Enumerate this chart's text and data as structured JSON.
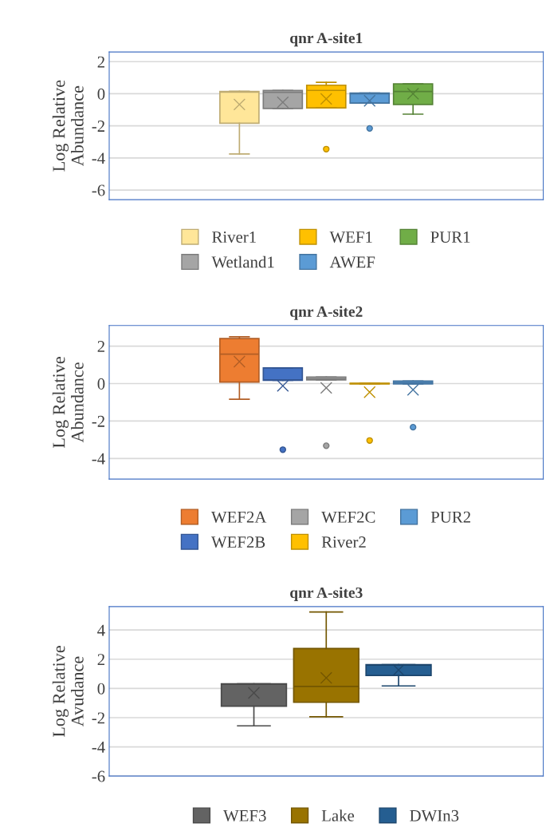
{
  "chart_data": [
    {
      "type": "box",
      "title": "qnr A-site1",
      "ylabel": "Log Relative\nAbundance",
      "categories": [
        null
      ],
      "ylim": [
        -6.6,
        2.6
      ],
      "yticks": [
        -6,
        -4,
        -2,
        0,
        2
      ],
      "grid": "y",
      "legend": "bottom",
      "marker": "cross",
      "series": [
        {
          "name": "River1",
          "color": "#ffe699",
          "boxes": [
            {
              "low": -3.75,
              "q1": -1.84,
              "median": 0.1,
              "q3": 0.14,
              "high": 0.15,
              "mean": -0.67
            }
          ]
        },
        {
          "name": "Wetland1",
          "color": "#a5a5a5",
          "boxes": [
            {
              "low": -0.92,
              "q1": -0.92,
              "median": 0.09,
              "q3": 0.21,
              "high": 0.21,
              "mean": -0.53
            }
          ]
        },
        {
          "name": "WEF1",
          "color": "#ffc000",
          "boxes": [
            {
              "low": -0.88,
              "q1": -0.88,
              "median": 0.21,
              "q3": 0.53,
              "high": 0.71,
              "mean": -0.32,
              "outliers": [
                -3.45
              ]
            }
          ]
        },
        {
          "name": "AWEF",
          "color": "#5b9bd5",
          "boxes": [
            {
              "low": -0.58,
              "q1": -0.58,
              "median": 0.0,
              "q3": 0.04,
              "high": 0.04,
              "mean": -0.44,
              "outliers": [
                -2.16
              ]
            }
          ]
        },
        {
          "name": "PUR1",
          "color": "#70ad47",
          "boxes": [
            {
              "low": -1.27,
              "q1": -0.67,
              "median": 0.14,
              "q3": 0.62,
              "high": 0.62,
              "mean": 0.0
            }
          ]
        }
      ]
    },
    {
      "type": "box",
      "title": "qnr A-site2",
      "ylabel": "Log Relative\nAbundance",
      "categories": [
        null
      ],
      "ylim": [
        -5.1,
        3.1
      ],
      "yticks": [
        -4,
        -2,
        0,
        2
      ],
      "grid": "y",
      "legend": "bottom",
      "marker": "cross",
      "series": [
        {
          "name": "WEF2A",
          "color": "#ed7d31",
          "boxes": [
            {
              "low": -0.84,
              "q1": 0.08,
              "median": 1.57,
              "q3": 2.4,
              "high": 2.5,
              "mean": 1.17
            }
          ]
        },
        {
          "name": "WEF2B",
          "color": "#4472c4",
          "boxes": [
            {
              "low": 0.17,
              "q1": 0.17,
              "median": 0.2,
              "q3": 0.84,
              "high": 0.84,
              "mean": -0.12,
              "outliers": [
                -3.53
              ]
            }
          ]
        },
        {
          "name": "WEF2C",
          "color": "#a5a5a5",
          "boxes": [
            {
              "low": 0.2,
              "q1": 0.2,
              "median": 0.25,
              "q3": 0.35,
              "high": 0.35,
              "mean": -0.23,
              "outliers": [
                -3.32
              ]
            }
          ]
        },
        {
          "name": "River2",
          "color": "#ffc000",
          "boxes": [
            {
              "low": -0.02,
              "q1": -0.02,
              "median": 0.0,
              "q3": 0.02,
              "high": 0.02,
              "mean": -0.46,
              "outliers": [
                -3.04
              ]
            }
          ]
        },
        {
          "name": "PUR2",
          "color": "#5b9bd5",
          "boxes": [
            {
              "low": -0.02,
              "q1": -0.02,
              "median": 0.05,
              "q3": 0.14,
              "high": 0.14,
              "mean": -0.33,
              "outliers": [
                -2.33
              ]
            }
          ]
        }
      ]
    },
    {
      "type": "box",
      "title": "qnr A-site3",
      "ylabel": "Log Relative\nAvudance",
      "categories": [
        null
      ],
      "ylim": [
        -6.0,
        5.6
      ],
      "yticks": [
        -6,
        -4,
        -2,
        0,
        2,
        4
      ],
      "grid": "y",
      "legend": "bottom",
      "marker": "cross",
      "series": [
        {
          "name": "WEF3",
          "color": "#636363",
          "boxes": [
            {
              "low": -2.56,
              "q1": -1.22,
              "median": 0.3,
              "q3": 0.31,
              "high": 0.31,
              "mean": -0.31
            }
          ]
        },
        {
          "name": "Lake",
          "color": "#997300",
          "boxes": [
            {
              "low": -1.94,
              "q1": -0.95,
              "median": 0.14,
              "q3": 2.73,
              "high": 5.23,
              "mean": 0.72
            }
          ]
        },
        {
          "name": "DWIn3",
          "color": "#255e91",
          "boxes": [
            {
              "low": 0.17,
              "q1": 0.89,
              "median": 1.6,
              "q3": 1.63,
              "high": 1.63,
              "mean": 1.26
            }
          ]
        }
      ]
    }
  ]
}
